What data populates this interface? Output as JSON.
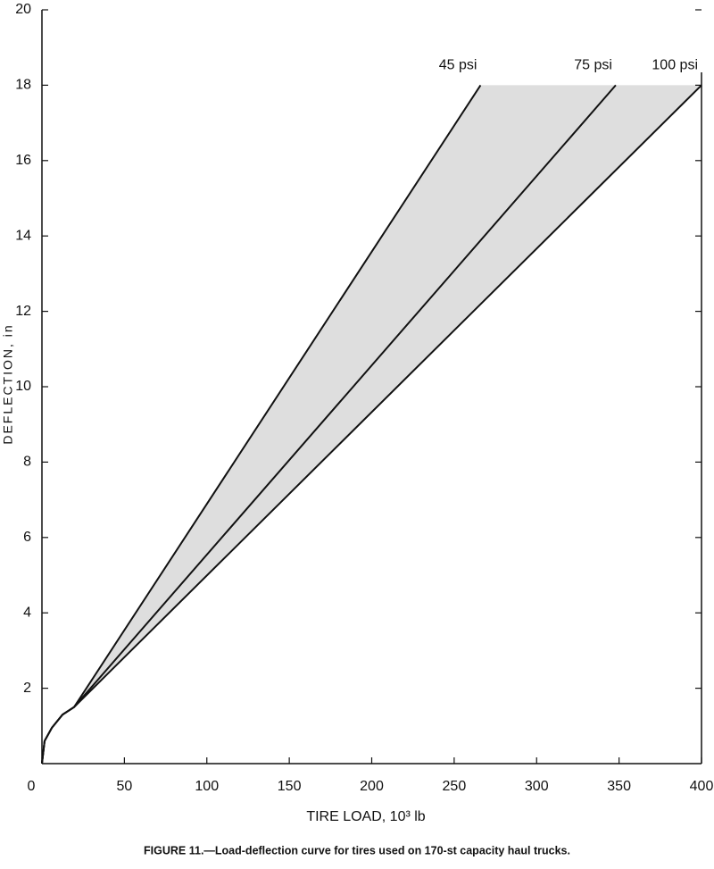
{
  "chart_data": {
    "type": "line",
    "caption": "FIGURE 11.—Load-deflection curve for tires used on 170-st capacity haul trucks.",
    "x_label": "TIRE LOAD, 10³ lb",
    "y_label": "DEFLECTION, in",
    "xlim": [
      0,
      400
    ],
    "ylim": [
      0,
      20
    ],
    "xticks": [
      0,
      50,
      100,
      150,
      200,
      250,
      300,
      350,
      400
    ],
    "yticks": [
      2,
      4,
      6,
      8,
      10,
      12,
      14,
      16,
      18,
      20
    ],
    "shade_color": "#c8c8c8",
    "series": [
      {
        "name": "45 psi",
        "color": "#111111",
        "x": [
          0,
          1.6,
          6,
          12.5,
          19.5,
          266
        ],
        "values": [
          0,
          0.6,
          0.95,
          1.3,
          1.5,
          18
        ]
      },
      {
        "name": "75 psi",
        "color": "#111111",
        "x": [
          0,
          1.6,
          6,
          12.5,
          19.5,
          348
        ],
        "values": [
          0,
          0.6,
          0.95,
          1.3,
          1.5,
          18
        ]
      },
      {
        "name": "100 psi",
        "color": "#111111",
        "x": [
          0,
          1.6,
          6,
          12.5,
          19.5,
          400
        ],
        "values": [
          0,
          0.6,
          0.95,
          1.3,
          1.5,
          18
        ]
      }
    ]
  }
}
